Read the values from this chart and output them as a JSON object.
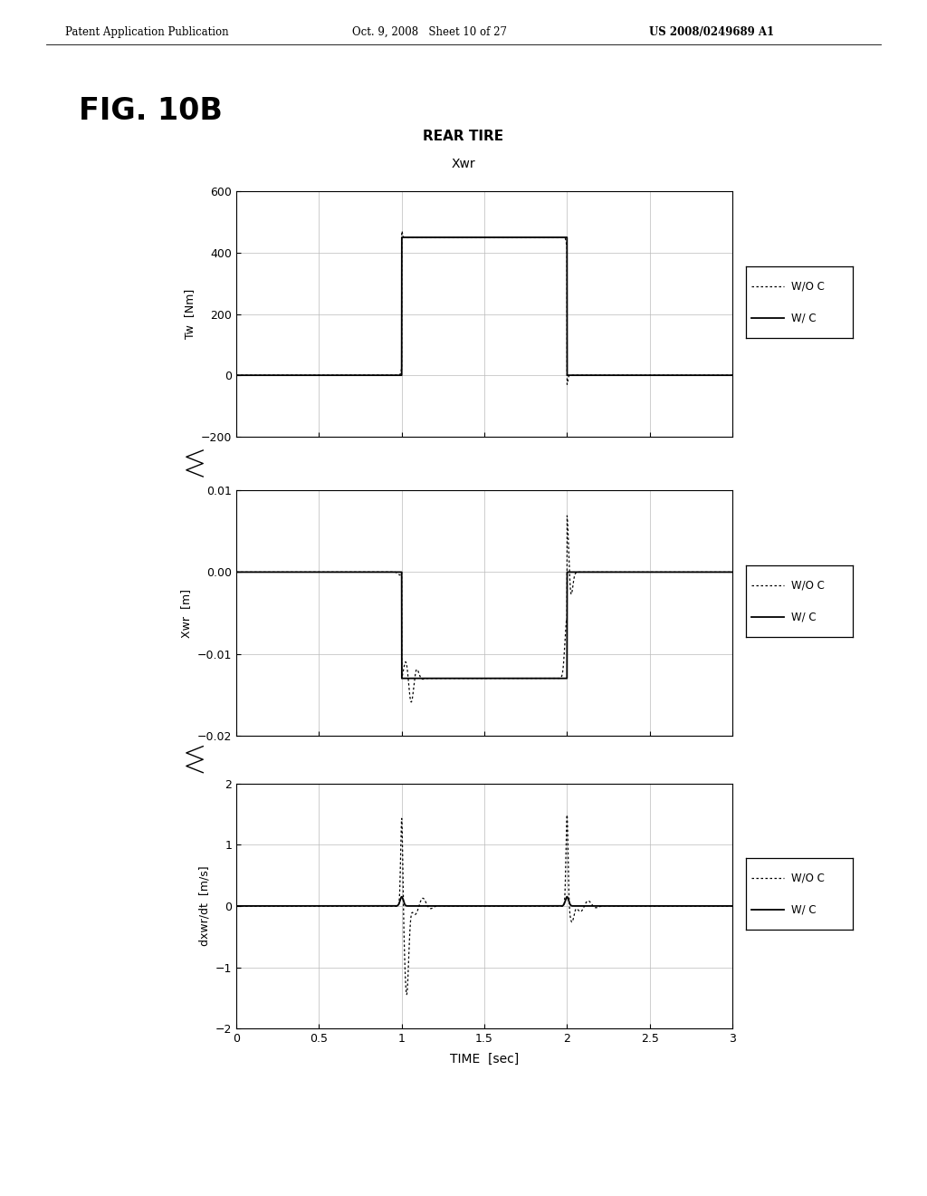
{
  "header_left": "Patent Application Publication",
  "header_mid": "Oct. 9, 2008   Sheet 10 of 27",
  "header_right": "US 2008/0249689 A1",
  "fig_label": "FIG. 10B",
  "section_title": "REAR TIRE",
  "plot1_title": "Xwr",
  "plot1_ylabel": "Tw  [Nm]",
  "plot1_ylim": [
    -200,
    600
  ],
  "plot1_yticks": [
    -200,
    0,
    200,
    400,
    600
  ],
  "plot2_ylabel": "Xwr  [m]",
  "plot2_ylim": [
    -0.02,
    0.01
  ],
  "plot2_yticks": [
    -0.02,
    -0.01,
    0,
    0.01
  ],
  "plot3_ylabel": "dxwr/dt  [m/s]",
  "plot3_ylim": [
    -2,
    2
  ],
  "plot3_yticks": [
    -2,
    -1,
    0,
    1,
    2
  ],
  "xlabel": "TIME  [sec]",
  "xlim": [
    0,
    3
  ],
  "xticks": [
    0,
    0.5,
    1,
    1.5,
    2,
    2.5,
    3
  ],
  "xtick_labels": [
    "0",
    "0.5",
    "1",
    "1.5",
    "2",
    "2.5",
    "3"
  ],
  "legend_labels": [
    "W/O C",
    "W/ C"
  ],
  "bg_color": "#ffffff",
  "line_color": "#000000",
  "grid_color": "#bbbbbb"
}
